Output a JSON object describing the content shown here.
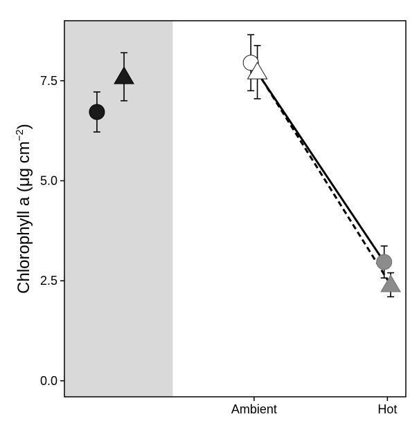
{
  "chart_data": {
    "type": "scatter",
    "ylabel": "Chlorophyll a (μg cm",
    "ylabel_sup": "−2",
    "ylabel_close": ")",
    "categories": [
      "Ambient",
      "Hot"
    ],
    "ylim": [
      -0.4,
      9.0
    ],
    "yticks": [
      0.0,
      2.5,
      5.0,
      7.5
    ],
    "ytick_labels": [
      "0.0",
      "2.5",
      "5.0",
      "7.5"
    ],
    "grid": false,
    "shaded_region": {
      "from_x": 0.0,
      "to_x": 1.0,
      "color": "#d9d9d9"
    },
    "x_domain": [
      0.0,
      3.15
    ],
    "reference_points": [
      {
        "shape": "circle",
        "fill": "#1a1a1a",
        "x": 0.3,
        "y": 6.72,
        "err_low": 6.22,
        "err_high": 7.22
      },
      {
        "shape": "triangle",
        "fill": "#1a1a1a",
        "x": 0.55,
        "y": 7.6,
        "err_low": 7.0,
        "err_high": 8.2
      }
    ],
    "series": [
      {
        "shape": "circle",
        "line_style": "solid",
        "points": [
          {
            "category": "Ambient",
            "x": 1.72,
            "fill": "#ffffff",
            "y": 7.95,
            "err_low": 7.25,
            "err_high": 8.65
          },
          {
            "category": "Hot",
            "x": 2.95,
            "fill": "#8c8c8c",
            "y": 2.97,
            "err_low": 2.57,
            "err_high": 3.37
          }
        ]
      },
      {
        "shape": "triangle",
        "line_style": "dashed",
        "points": [
          {
            "category": "Ambient",
            "x": 1.78,
            "fill": "#ffffff",
            "y": 7.72,
            "err_low": 7.05,
            "err_high": 8.38
          },
          {
            "category": "Hot",
            "x": 3.01,
            "fill": "#8c8c8c",
            "y": 2.4,
            "err_low": 2.1,
            "err_high": 2.7
          }
        ]
      }
    ]
  }
}
